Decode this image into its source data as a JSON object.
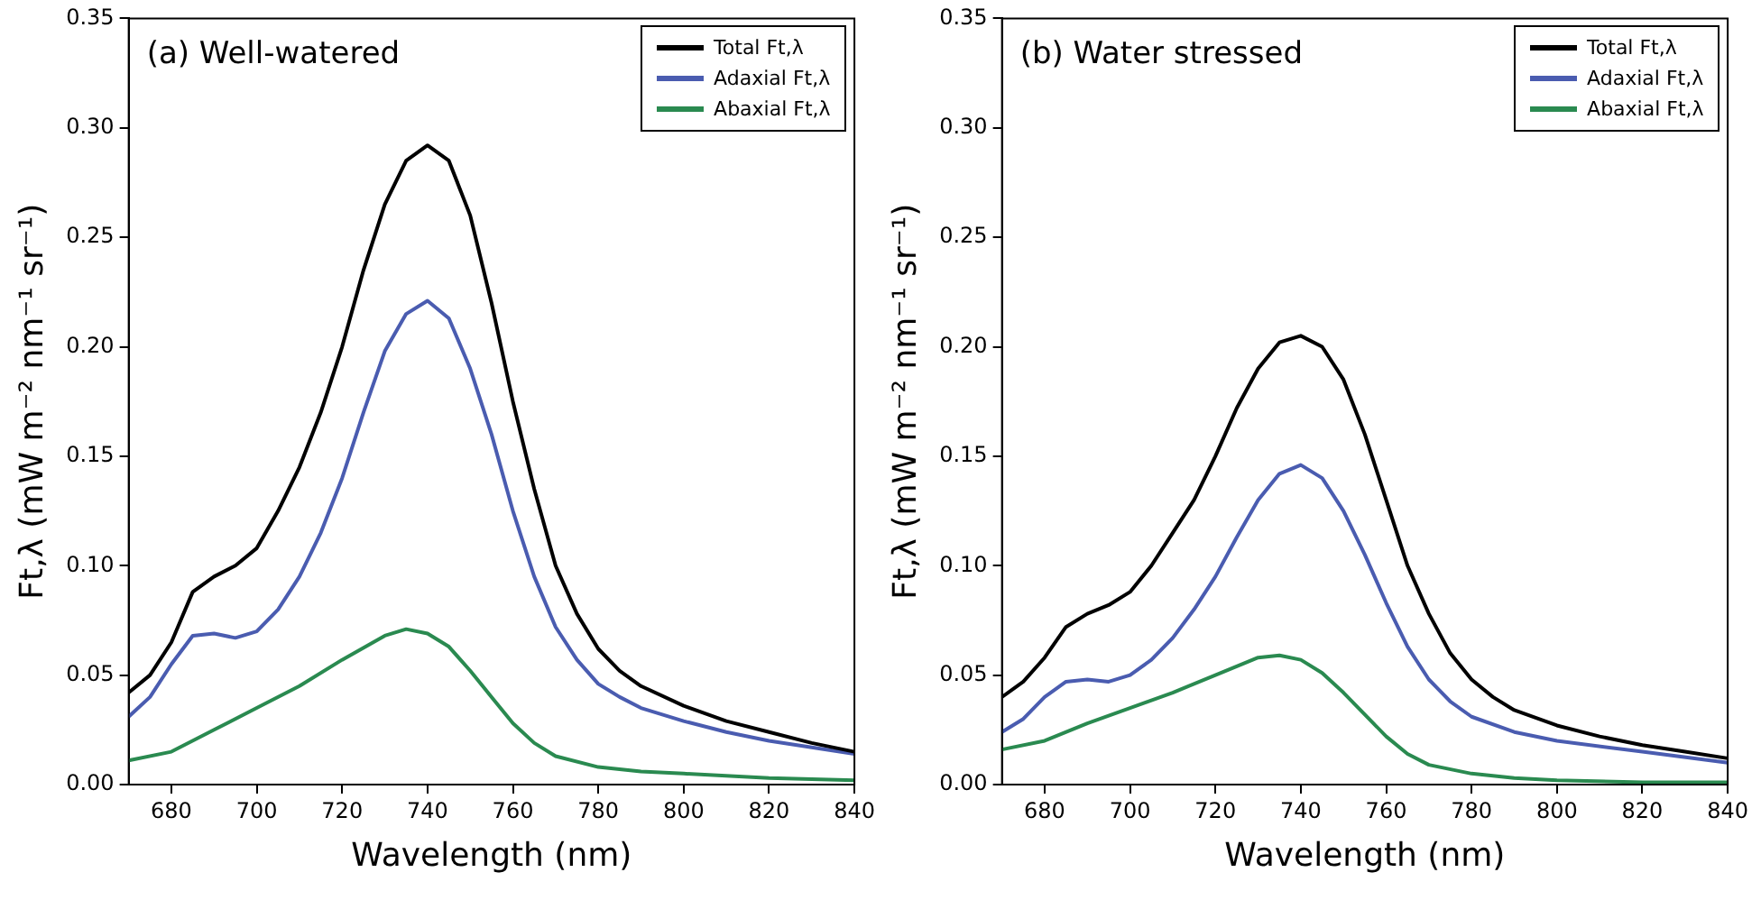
{
  "chart_data": [
    {
      "type": "line",
      "annotations": [
        "(a) Well-watered"
      ],
      "xlabel": "Wavelength (nm)",
      "ylabel": "Ft,λ (mW m⁻² nm⁻¹ sr⁻¹)",
      "xlim": [
        670,
        840
      ],
      "xticks": [
        680,
        700,
        720,
        740,
        760,
        780,
        800,
        820,
        840
      ],
      "ylim": [
        0,
        0.35
      ],
      "yticks": [
        {
          "value": 0,
          "label": "0.00"
        },
        0.05,
        {
          "value": 0.1,
          "label": "0.10"
        },
        0.15,
        {
          "value": 0.2,
          "label": "0.20"
        },
        0.25,
        {
          "value": 0.3,
          "label": "0.30"
        },
        0.35
      ],
      "grid": false,
      "legend": "top right",
      "marker": "none",
      "line_style": "solid",
      "series": [
        {
          "name": "Total Ft,λ",
          "color": "#000000",
          "x": [
            670,
            675,
            680,
            685,
            690,
            695,
            700,
            705,
            710,
            715,
            720,
            725,
            730,
            735,
            740,
            745,
            750,
            755,
            760,
            765,
            770,
            775,
            780,
            785,
            790,
            800,
            810,
            820,
            830,
            840
          ],
          "values": [
            0.042,
            0.05,
            0.065,
            0.088,
            0.095,
            0.1,
            0.108,
            0.125,
            0.145,
            0.17,
            0.2,
            0.235,
            0.265,
            0.285,
            0.292,
            0.285,
            0.26,
            0.22,
            0.175,
            0.135,
            0.1,
            0.078,
            0.062,
            0.052,
            0.045,
            0.036,
            0.029,
            0.024,
            0.019,
            0.015
          ]
        },
        {
          "name": "Adaxial Ft,λ",
          "color": "#4a5cb0",
          "x": [
            670,
            675,
            680,
            685,
            690,
            695,
            700,
            705,
            710,
            715,
            720,
            725,
            730,
            735,
            740,
            745,
            750,
            755,
            760,
            765,
            770,
            775,
            780,
            785,
            790,
            800,
            810,
            820,
            830,
            840
          ],
          "values": [
            0.031,
            0.04,
            0.055,
            0.068,
            0.069,
            0.067,
            0.07,
            0.08,
            0.095,
            0.115,
            0.14,
            0.17,
            0.198,
            0.215,
            0.221,
            0.213,
            0.19,
            0.16,
            0.125,
            0.095,
            0.072,
            0.057,
            0.046,
            0.04,
            0.035,
            0.029,
            0.024,
            0.02,
            0.017,
            0.014
          ]
        },
        {
          "name": "Abaxial Ft,λ",
          "color": "#2a8a50",
          "x": [
            670,
            680,
            690,
            700,
            710,
            720,
            730,
            735,
            740,
            745,
            750,
            755,
            760,
            765,
            770,
            780,
            790,
            800,
            820,
            840
          ],
          "values": [
            0.011,
            0.015,
            0.025,
            0.035,
            0.045,
            0.057,
            0.068,
            0.071,
            0.069,
            0.063,
            0.052,
            0.04,
            0.028,
            0.019,
            0.013,
            0.008,
            0.006,
            0.005,
            0.003,
            0.002
          ]
        }
      ]
    },
    {
      "type": "line",
      "annotations": [
        "(b) Water stressed"
      ],
      "xlabel": "Wavelength (nm)",
      "ylabel": "Ft,λ (mW m⁻² nm⁻¹ sr⁻¹)",
      "xlim": [
        670,
        840
      ],
      "xticks": [
        680,
        700,
        720,
        740,
        760,
        780,
        800,
        820,
        840
      ],
      "ylim": [
        0,
        0.35
      ],
      "yticks": [
        {
          "value": 0,
          "label": "0.00"
        },
        0.05,
        {
          "value": 0.1,
          "label": "0.10"
        },
        0.15,
        {
          "value": 0.2,
          "label": "0.20"
        },
        0.25,
        {
          "value": 0.3,
          "label": "0.30"
        },
        0.35
      ],
      "grid": false,
      "legend": "top right",
      "marker": "none",
      "line_style": "solid",
      "series": [
        {
          "name": "Total Ft,λ",
          "color": "#000000",
          "x": [
            670,
            675,
            680,
            685,
            690,
            695,
            700,
            705,
            710,
            715,
            720,
            725,
            730,
            735,
            740,
            745,
            750,
            755,
            760,
            765,
            770,
            775,
            780,
            785,
            790,
            800,
            810,
            820,
            830,
            840
          ],
          "values": [
            0.04,
            0.047,
            0.058,
            0.072,
            0.078,
            0.082,
            0.088,
            0.1,
            0.115,
            0.13,
            0.15,
            0.172,
            0.19,
            0.202,
            0.205,
            0.2,
            0.185,
            0.16,
            0.13,
            0.1,
            0.078,
            0.06,
            0.048,
            0.04,
            0.034,
            0.027,
            0.022,
            0.018,
            0.015,
            0.012
          ]
        },
        {
          "name": "Adaxial Ft,λ",
          "color": "#4a5cb0",
          "x": [
            670,
            675,
            680,
            685,
            690,
            695,
            700,
            705,
            710,
            715,
            720,
            725,
            730,
            735,
            740,
            745,
            750,
            755,
            760,
            765,
            770,
            775,
            780,
            790,
            800,
            820,
            840
          ],
          "values": [
            0.024,
            0.03,
            0.04,
            0.047,
            0.048,
            0.047,
            0.05,
            0.057,
            0.067,
            0.08,
            0.095,
            0.113,
            0.13,
            0.142,
            0.146,
            0.14,
            0.125,
            0.105,
            0.083,
            0.063,
            0.048,
            0.038,
            0.031,
            0.024,
            0.02,
            0.015,
            0.01
          ]
        },
        {
          "name": "Abaxial Ft,λ",
          "color": "#2a8a50",
          "x": [
            670,
            680,
            690,
            700,
            710,
            720,
            730,
            735,
            740,
            745,
            750,
            755,
            760,
            765,
            770,
            780,
            790,
            800,
            820,
            840
          ],
          "values": [
            0.016,
            0.02,
            0.028,
            0.035,
            0.042,
            0.05,
            0.058,
            0.059,
            0.057,
            0.051,
            0.042,
            0.032,
            0.022,
            0.014,
            0.009,
            0.005,
            0.003,
            0.002,
            0.001,
            0.001
          ]
        }
      ]
    }
  ]
}
